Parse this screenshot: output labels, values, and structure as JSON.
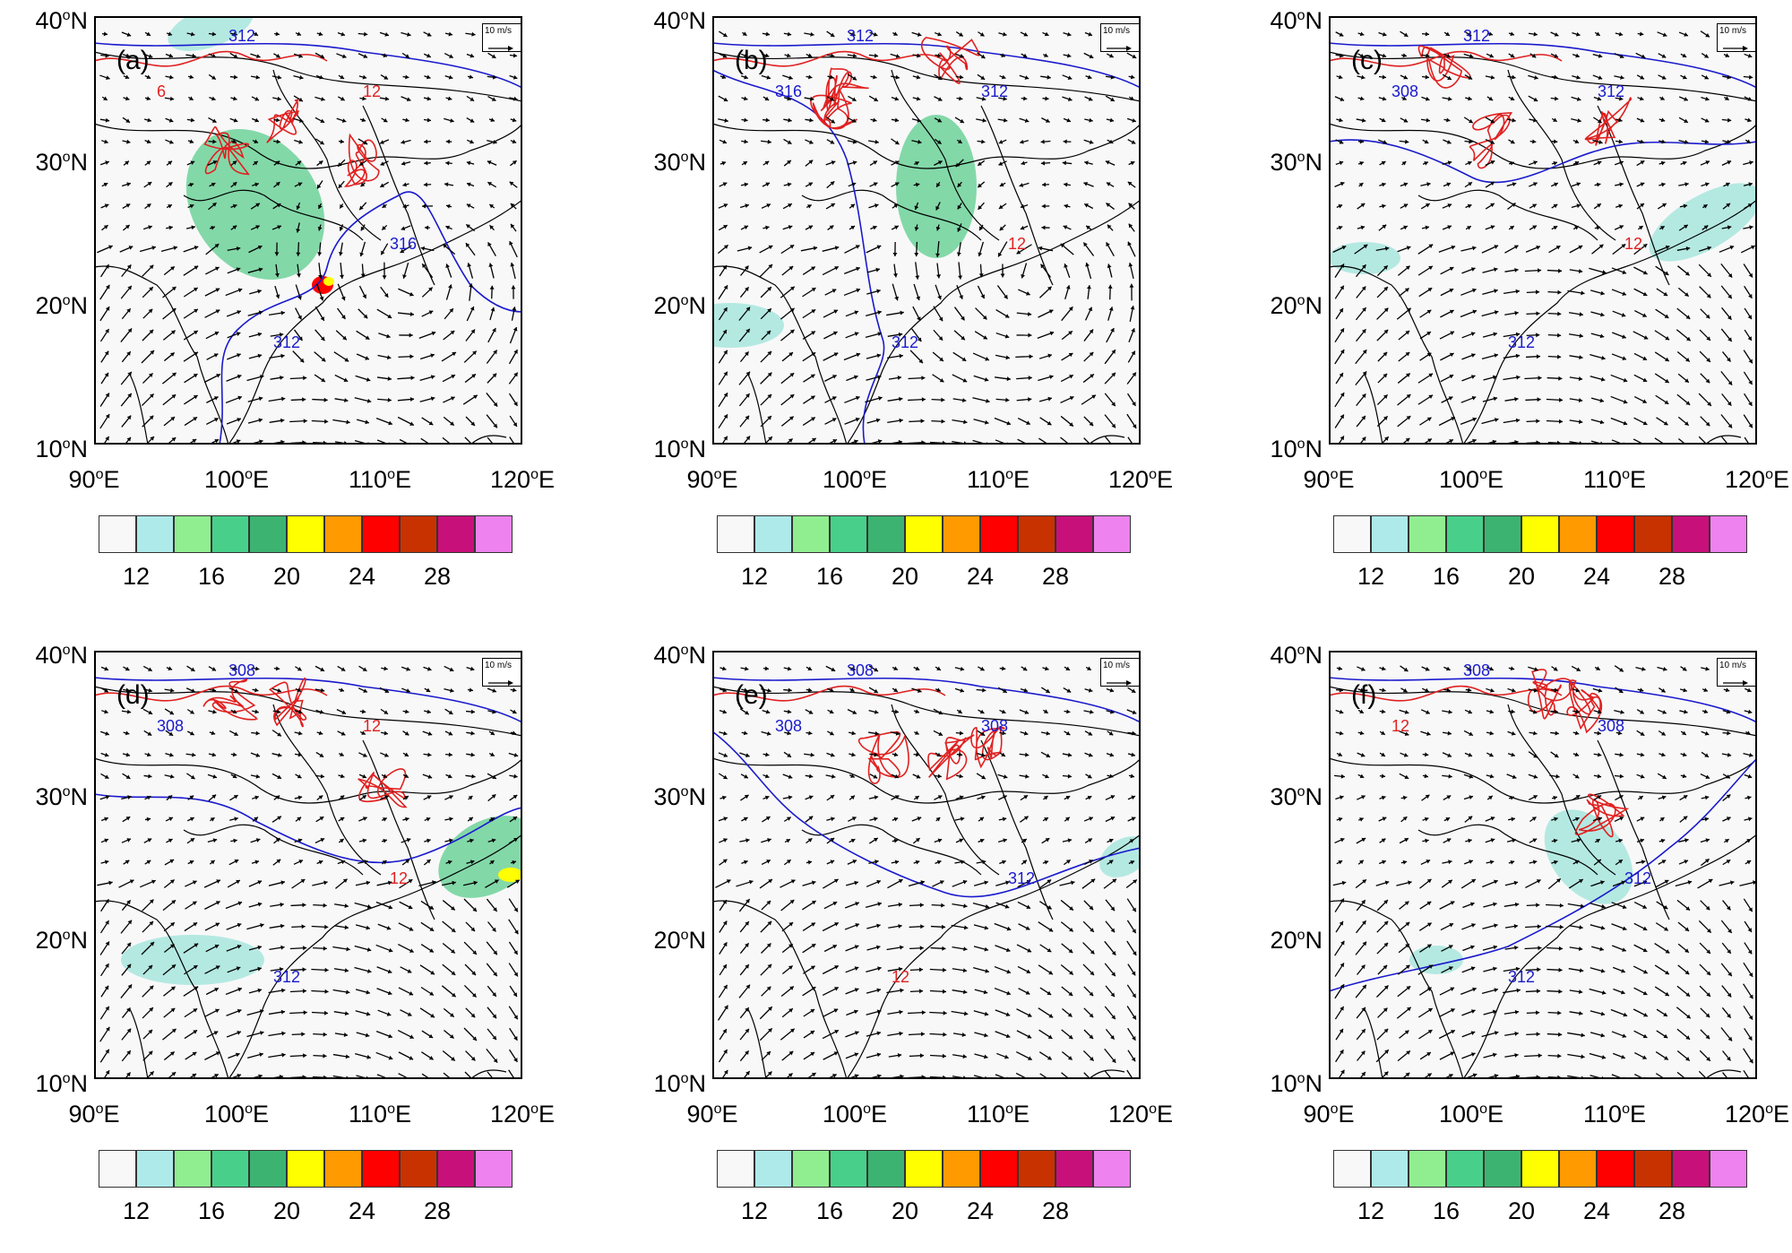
{
  "panels": [
    {
      "letter": "(a)",
      "contour_labels": [
        "312",
        "12",
        "6",
        "316",
        "312"
      ]
    },
    {
      "letter": "(b)",
      "contour_labels": [
        "312",
        "312",
        "316",
        "12",
        "312"
      ]
    },
    {
      "letter": "(c)",
      "contour_labels": [
        "312",
        "312",
        "308",
        "12",
        "312"
      ]
    },
    {
      "letter": "(d)",
      "contour_labels": [
        "308",
        "12",
        "308",
        "12",
        "312"
      ]
    },
    {
      "letter": "(e)",
      "contour_labels": [
        "308",
        "308",
        "308",
        "312",
        "12"
      ]
    },
    {
      "letter": "(f)",
      "contour_labels": [
        "308",
        "308",
        "12",
        "312",
        "312"
      ]
    }
  ],
  "axes": {
    "lat_ticks": [
      "10",
      "20",
      "30",
      "40"
    ],
    "lat_suffix": "N",
    "lon_ticks": [
      "90",
      "100",
      "110",
      "120"
    ],
    "lon_suffix": "E",
    "degree": "o"
  },
  "wind_reference": "10 m/s",
  "colorbar": {
    "labels": [
      "12",
      "16",
      "20",
      "24",
      "28"
    ],
    "colors": [
      "#f8f8f8",
      "#aeeaea",
      "#90ee90",
      "#48d08a",
      "#3cb371",
      "#ffff00",
      "#ff9a00",
      "#ff0000",
      "#c83200",
      "#c8107a",
      "#ee82ee"
    ]
  },
  "colors": {
    "contour_blue": "#1a1acd",
    "contour_red": "#e02020",
    "coast": "#000000",
    "shade_green": "#6ed29a",
    "shade_cyan": "#a8e6de"
  }
}
